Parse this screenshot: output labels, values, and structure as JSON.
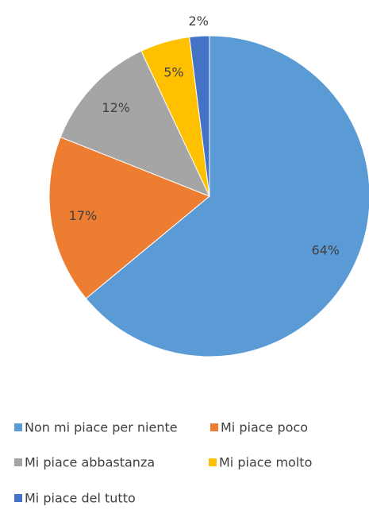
{
  "chart_data": {
    "type": "pie",
    "categories": [
      "Non mi piace per niente",
      "Mi piace poco",
      "Mi piace abbastanza",
      "Mi piace molto",
      "Mi piace del tutto"
    ],
    "values": [
      64,
      17,
      12,
      5,
      2
    ],
    "value_labels": [
      "64%",
      "17%",
      "12%",
      "5%",
      "2%"
    ],
    "colors": [
      "#5b9bd5",
      "#ed7d31",
      "#a5a5a5",
      "#ffc000",
      "#4472c4"
    ],
    "legend": "bottom"
  }
}
